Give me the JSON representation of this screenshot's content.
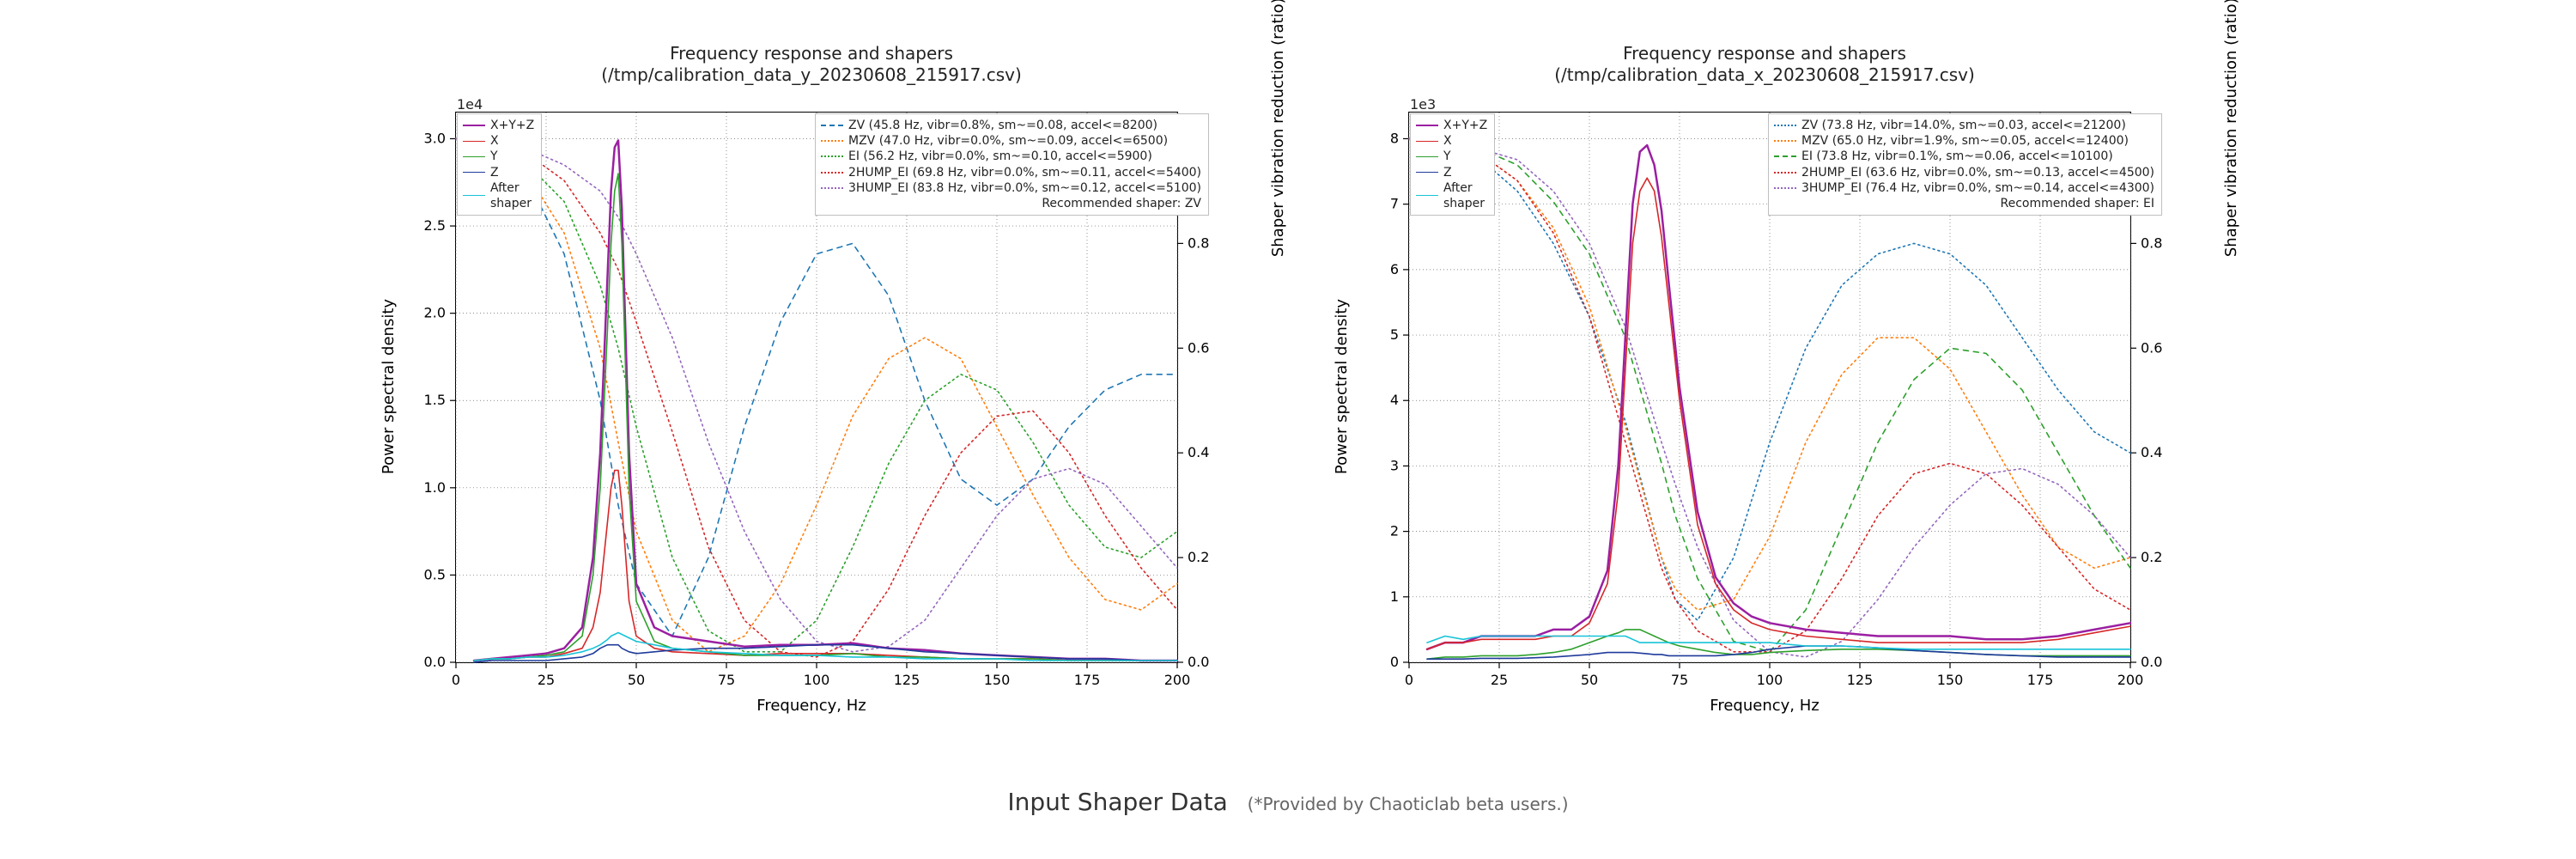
{
  "caption": {
    "main": "Input Shaper Data",
    "note": "(*Provided by Chaoticlab beta users.)"
  },
  "axes_common": {
    "x_label": "Frequency, Hz",
    "y_left_label": "Power spectral density",
    "y_right_label": "Shaper vibration reduction (ratio)",
    "x_ticks": [
      0,
      25,
      50,
      75,
      100,
      125,
      150,
      175,
      200
    ],
    "xlim": [
      0,
      200
    ],
    "y2_ticks": [
      0.0,
      0.2,
      0.4,
      0.6,
      0.8,
      1.0
    ],
    "y2_lim": [
      0,
      1.05
    ],
    "grid_color": "#666666",
    "background_color": "#ffffff",
    "font_family": "DejaVu Sans",
    "title_fontsize": 20,
    "label_fontsize": 18,
    "tick_fontsize": 16
  },
  "psd_legend_items": [
    {
      "key": "sum",
      "label": "X+Y+Z",
      "color": "#9b1fa2",
      "dash": "solid",
      "w": 2.5
    },
    {
      "key": "x",
      "label": "X",
      "color": "#d62728",
      "dash": "solid",
      "w": 1.6
    },
    {
      "key": "y",
      "label": "Y",
      "color": "#2ca02c",
      "dash": "solid",
      "w": 1.6
    },
    {
      "key": "z",
      "label": "Z",
      "color": "#1f3b9b",
      "dash": "solid",
      "w": 1.6
    },
    {
      "key": "after",
      "label": "After\nshaper",
      "color": "#17c4d8",
      "dash": "solid",
      "w": 1.6
    }
  ],
  "charts": [
    {
      "id": "y",
      "title_line1": "Frequency response and shapers",
      "title_line2": "(/tmp/calibration_data_y_20230608_215917.csv)",
      "exp_label": "1e4",
      "y1_ticks": [
        0.0,
        0.5,
        1.0,
        1.5,
        2.0,
        2.5,
        3.0
      ],
      "y1_lim": [
        0,
        3.15
      ],
      "legend_left_x": 112,
      "shapers": [
        {
          "key": "zv",
          "label": "ZV (45.8 Hz, vibr=0.8%, sm~=0.08, accel<=8200)",
          "color": "#1f77b4",
          "dash": "6 6",
          "w": 1.6
        },
        {
          "key": "mzv",
          "label": "MZV (47.0 Hz, vibr=0.0%, sm~=0.09, accel<=6500)",
          "color": "#ff7f0e",
          "dash": "2 4",
          "w": 1.6
        },
        {
          "key": "ei",
          "label": "EI (56.2 Hz, vibr=0.0%, sm~=0.10, accel<=5900)",
          "color": "#2ca02c",
          "dash": "2 4",
          "w": 1.6
        },
        {
          "key": "hump2",
          "label": "2HUMP_EI (69.8 Hz, vibr=0.0%, sm~=0.11, accel<=5400)",
          "color": "#d62728",
          "dash": "2 4",
          "w": 1.6
        },
        {
          "key": "hump3",
          "label": "3HUMP_EI (83.8 Hz, vibr=0.0%, sm~=0.12, accel<=5100)",
          "color": "#9467bd",
          "dash": "2 4",
          "w": 1.6
        }
      ],
      "recommended": "Recommended shaper: ZV",
      "psd": {
        "freq": [
          5,
          10,
          15,
          20,
          25,
          30,
          35,
          38,
          40,
          42,
          43,
          44,
          45,
          46,
          48,
          50,
          55,
          60,
          70,
          80,
          90,
          100,
          110,
          120,
          130,
          140,
          150,
          160,
          170,
          180,
          190,
          200
        ],
        "sum": [
          0.01,
          0.02,
          0.03,
          0.04,
          0.05,
          0.08,
          0.2,
          0.6,
          1.2,
          2.2,
          2.7,
          2.95,
          2.99,
          2.6,
          1.2,
          0.45,
          0.2,
          0.15,
          0.12,
          0.09,
          0.1,
          0.1,
          0.11,
          0.08,
          0.07,
          0.05,
          0.04,
          0.03,
          0.02,
          0.02,
          0.01,
          0.01
        ],
        "x": [
          0.01,
          0.02,
          0.02,
          0.03,
          0.03,
          0.05,
          0.08,
          0.2,
          0.4,
          0.8,
          1.0,
          1.1,
          1.1,
          0.9,
          0.35,
          0.15,
          0.08,
          0.06,
          0.05,
          0.04,
          0.05,
          0.05,
          0.05,
          0.04,
          0.03,
          0.02,
          0.02,
          0.02,
          0.01,
          0.01,
          0.01,
          0.01
        ],
        "y": [
          0.01,
          0.02,
          0.02,
          0.03,
          0.04,
          0.06,
          0.15,
          0.5,
          1.0,
          1.9,
          2.4,
          2.7,
          2.8,
          2.4,
          1.0,
          0.35,
          0.12,
          0.08,
          0.06,
          0.04,
          0.04,
          0.04,
          0.05,
          0.03,
          0.03,
          0.02,
          0.02,
          0.02,
          0.01,
          0.01,
          0.01,
          0.01
        ],
        "z": [
          0.0,
          0.01,
          0.01,
          0.01,
          0.01,
          0.02,
          0.03,
          0.05,
          0.08,
          0.1,
          0.1,
          0.1,
          0.1,
          0.08,
          0.06,
          0.05,
          0.06,
          0.07,
          0.08,
          0.08,
          0.09,
          0.1,
          0.1,
          0.08,
          0.06,
          0.05,
          0.04,
          0.03,
          0.02,
          0.02,
          0.01,
          0.01
        ],
        "after": [
          0.01,
          0.02,
          0.02,
          0.03,
          0.03,
          0.04,
          0.06,
          0.08,
          0.1,
          0.13,
          0.15,
          0.16,
          0.17,
          0.16,
          0.14,
          0.12,
          0.1,
          0.08,
          0.06,
          0.05,
          0.04,
          0.04,
          0.03,
          0.03,
          0.02,
          0.02,
          0.02,
          0.01,
          0.01,
          0.01,
          0.01,
          0.01
        ]
      },
      "sh": {
        "freq": [
          0,
          10,
          20,
          30,
          40,
          45,
          50,
          60,
          70,
          80,
          90,
          100,
          110,
          120,
          130,
          140,
          150,
          160,
          170,
          180,
          190,
          200
        ],
        "zv": [
          1.0,
          0.98,
          0.92,
          0.78,
          0.5,
          0.3,
          0.15,
          0.05,
          0.2,
          0.45,
          0.65,
          0.78,
          0.8,
          0.7,
          0.5,
          0.35,
          0.3,
          0.35,
          0.45,
          0.52,
          0.55,
          0.55
        ],
        "mzv": [
          1.0,
          0.98,
          0.93,
          0.82,
          0.6,
          0.42,
          0.25,
          0.08,
          0.02,
          0.05,
          0.15,
          0.3,
          0.47,
          0.58,
          0.62,
          0.58,
          0.45,
          0.32,
          0.2,
          0.12,
          0.1,
          0.15
        ],
        "ei": [
          1.0,
          0.99,
          0.95,
          0.88,
          0.72,
          0.6,
          0.45,
          0.2,
          0.06,
          0.02,
          0.02,
          0.08,
          0.22,
          0.38,
          0.5,
          0.55,
          0.52,
          0.42,
          0.3,
          0.22,
          0.2,
          0.25
        ],
        "hump2": [
          1.0,
          0.99,
          0.97,
          0.92,
          0.82,
          0.75,
          0.65,
          0.44,
          0.22,
          0.08,
          0.02,
          0.01,
          0.04,
          0.14,
          0.28,
          0.4,
          0.47,
          0.48,
          0.4,
          0.28,
          0.18,
          0.1
        ],
        "hump3": [
          1.0,
          0.99,
          0.98,
          0.95,
          0.9,
          0.85,
          0.78,
          0.62,
          0.42,
          0.25,
          0.12,
          0.04,
          0.02,
          0.03,
          0.08,
          0.18,
          0.28,
          0.35,
          0.37,
          0.34,
          0.26,
          0.18
        ]
      }
    },
    {
      "id": "x",
      "title_line1": "Frequency response and shapers",
      "title_line2": "(/tmp/calibration_data_x_20230608_215917.csv)",
      "exp_label": "1e3",
      "y1_ticks": [
        0,
        1,
        2,
        3,
        4,
        5,
        6,
        7,
        8
      ],
      "y1_lim": [
        0,
        8.4
      ],
      "legend_left_x": 112,
      "shapers": [
        {
          "key": "zv",
          "label": "ZV (73.8 Hz, vibr=14.0%, sm~=0.03, accel<=21200)",
          "color": "#1f77b4",
          "dash": "2 4",
          "w": 1.6
        },
        {
          "key": "mzv",
          "label": "MZV (65.0 Hz, vibr=1.9%, sm~=0.05, accel<=12400)",
          "color": "#ff7f0e",
          "dash": "2 4",
          "w": 1.6
        },
        {
          "key": "ei",
          "label": "EI (73.8 Hz, vibr=0.1%, sm~=0.06, accel<=10100)",
          "color": "#2ca02c",
          "dash": "6 6",
          "w": 1.6
        },
        {
          "key": "hump2",
          "label": "2HUMP_EI (63.6 Hz, vibr=0.0%, sm~=0.13, accel<=4500)",
          "color": "#d62728",
          "dash": "2 4",
          "w": 1.6
        },
        {
          "key": "hump3",
          "label": "3HUMP_EI (76.4 Hz, vibr=0.0%, sm~=0.14, accel<=4300)",
          "color": "#9467bd",
          "dash": "2 4",
          "w": 1.6
        }
      ],
      "recommended": "Recommended shaper: EI",
      "psd": {
        "freq": [
          5,
          10,
          15,
          20,
          25,
          30,
          35,
          40,
          45,
          50,
          55,
          58,
          60,
          62,
          64,
          66,
          68,
          70,
          72,
          75,
          80,
          85,
          90,
          95,
          100,
          110,
          120,
          130,
          140,
          150,
          160,
          170,
          180,
          190,
          200
        ],
        "sum": [
          0.2,
          0.3,
          0.3,
          0.4,
          0.4,
          0.4,
          0.4,
          0.5,
          0.5,
          0.7,
          1.4,
          3.0,
          5.0,
          7.0,
          7.8,
          7.9,
          7.6,
          6.9,
          5.8,
          4.2,
          2.3,
          1.3,
          0.9,
          0.7,
          0.6,
          0.5,
          0.45,
          0.4,
          0.4,
          0.4,
          0.35,
          0.35,
          0.4,
          0.5,
          0.6
        ],
        "x": [
          0.2,
          0.3,
          0.3,
          0.35,
          0.35,
          0.35,
          0.35,
          0.4,
          0.4,
          0.6,
          1.2,
          2.6,
          4.5,
          6.4,
          7.2,
          7.4,
          7.2,
          6.5,
          5.5,
          4.0,
          2.1,
          1.2,
          0.8,
          0.6,
          0.5,
          0.4,
          0.35,
          0.3,
          0.3,
          0.3,
          0.3,
          0.3,
          0.35,
          0.45,
          0.55
        ],
        "y": [
          0.05,
          0.08,
          0.08,
          0.1,
          0.1,
          0.1,
          0.12,
          0.15,
          0.2,
          0.3,
          0.4,
          0.45,
          0.5,
          0.5,
          0.5,
          0.45,
          0.4,
          0.35,
          0.3,
          0.25,
          0.2,
          0.15,
          0.12,
          0.12,
          0.15,
          0.18,
          0.2,
          0.2,
          0.18,
          0.15,
          0.12,
          0.1,
          0.1,
          0.1,
          0.1
        ],
        "z": [
          0.05,
          0.05,
          0.05,
          0.06,
          0.06,
          0.06,
          0.07,
          0.08,
          0.1,
          0.12,
          0.15,
          0.15,
          0.15,
          0.15,
          0.14,
          0.13,
          0.12,
          0.12,
          0.1,
          0.1,
          0.1,
          0.1,
          0.12,
          0.15,
          0.2,
          0.25,
          0.25,
          0.22,
          0.18,
          0.15,
          0.12,
          0.1,
          0.08,
          0.08,
          0.08
        ],
        "after": [
          0.3,
          0.4,
          0.35,
          0.4,
          0.4,
          0.4,
          0.4,
          0.4,
          0.4,
          0.4,
          0.4,
          0.4,
          0.4,
          0.35,
          0.3,
          0.3,
          0.3,
          0.3,
          0.3,
          0.3,
          0.3,
          0.3,
          0.3,
          0.3,
          0.3,
          0.25,
          0.25,
          0.22,
          0.2,
          0.2,
          0.2,
          0.2,
          0.2,
          0.2,
          0.2
        ]
      },
      "sh": {
        "freq": [
          0,
          10,
          20,
          30,
          40,
          50,
          60,
          70,
          73.8,
          80,
          90,
          100,
          110,
          120,
          130,
          140,
          150,
          160,
          170,
          180,
          190,
          200
        ],
        "zv": [
          1.0,
          0.99,
          0.96,
          0.9,
          0.8,
          0.66,
          0.46,
          0.2,
          0.12,
          0.08,
          0.2,
          0.42,
          0.6,
          0.72,
          0.78,
          0.8,
          0.78,
          0.72,
          0.62,
          0.52,
          0.44,
          0.4
        ],
        "mzv": [
          1.0,
          0.99,
          0.97,
          0.92,
          0.83,
          0.68,
          0.45,
          0.2,
          0.14,
          0.1,
          0.12,
          0.24,
          0.42,
          0.55,
          0.62,
          0.62,
          0.56,
          0.44,
          0.32,
          0.22,
          0.18,
          0.2
        ],
        "ei": [
          1.0,
          0.99,
          0.98,
          0.95,
          0.88,
          0.78,
          0.62,
          0.38,
          0.28,
          0.16,
          0.04,
          0.02,
          0.1,
          0.26,
          0.42,
          0.54,
          0.6,
          0.59,
          0.52,
          0.4,
          0.28,
          0.18
        ],
        "hump2": [
          1.0,
          0.99,
          0.97,
          0.92,
          0.82,
          0.66,
          0.42,
          0.18,
          0.12,
          0.06,
          0.02,
          0.02,
          0.06,
          0.16,
          0.28,
          0.36,
          0.38,
          0.36,
          0.3,
          0.22,
          0.14,
          0.1
        ],
        "hump3": [
          1.0,
          0.99,
          0.98,
          0.96,
          0.9,
          0.8,
          0.64,
          0.42,
          0.34,
          0.22,
          0.08,
          0.02,
          0.01,
          0.04,
          0.12,
          0.22,
          0.3,
          0.36,
          0.37,
          0.34,
          0.28,
          0.2
        ]
      }
    }
  ]
}
